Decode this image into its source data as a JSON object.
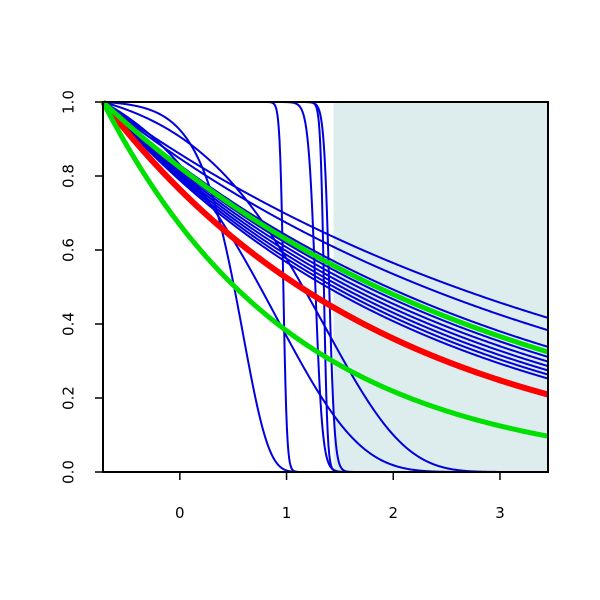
{
  "chart_data": {
    "type": "line",
    "title": "",
    "xlabel": "",
    "ylabel": "",
    "xlim": [
      -0.72,
      3.45
    ],
    "ylim": [
      0.0,
      1.0
    ],
    "x_ticks": [
      0,
      1,
      2,
      3
    ],
    "y_ticks": [
      "0.0",
      "0.2",
      "0.4",
      "0.6",
      "0.8",
      "1.0"
    ],
    "shaded_region": {
      "x_from": 1.44,
      "x_to": 3.45,
      "y_from": 0.0,
      "y_to": 1.0,
      "color": "#ddecec"
    },
    "colors": {
      "blue": "#0000dd",
      "red": "#ff0000",
      "green": "#00e000",
      "axis": "#000000"
    },
    "series": [
      {
        "kind": "exp",
        "rate": 0.21,
        "color": "blue",
        "width": 2
      },
      {
        "kind": "exp",
        "rate": 0.23,
        "color": "blue",
        "width": 2
      },
      {
        "kind": "exp",
        "rate": 0.26,
        "color": "blue",
        "width": 2
      },
      {
        "kind": "exp",
        "rate": 0.27,
        "color": "blue",
        "width": 2
      },
      {
        "kind": "exp",
        "rate": 0.28,
        "color": "blue",
        "width": 2
      },
      {
        "kind": "exp",
        "rate": 0.29,
        "color": "blue",
        "width": 2
      },
      {
        "kind": "exp",
        "rate": 0.3,
        "color": "blue",
        "width": 2
      },
      {
        "kind": "exp",
        "rate": 0.31,
        "color": "blue",
        "width": 2
      },
      {
        "kind": "exp",
        "rate": 0.32,
        "color": "blue",
        "width": 2
      },
      {
        "kind": "exp",
        "rate": 0.33,
        "color": "blue",
        "width": 2
      },
      {
        "kind": "gompertz",
        "a": 0.06,
        "b": 1.35,
        "color": "blue",
        "width": 2
      },
      {
        "kind": "gompertz",
        "a": 0.12,
        "b": 1.3,
        "color": "blue",
        "width": 2
      },
      {
        "kind": "gompertz",
        "a": 0.004,
        "b": 4.2,
        "color": "blue",
        "width": 2
      },
      {
        "kind": "logistic",
        "x0": 0.97,
        "k": 60,
        "color": "blue",
        "width": 2
      },
      {
        "kind": "logistic",
        "x0": 1.35,
        "k": 60,
        "color": "blue",
        "width": 2
      },
      {
        "kind": "logistic",
        "x0": 1.4,
        "k": 40,
        "color": "blue",
        "width": 2
      },
      {
        "kind": "logistic",
        "x0": 1.27,
        "k": 30,
        "color": "blue",
        "width": 2
      },
      {
        "kind": "exp",
        "rate": 0.375,
        "color": "red",
        "width": 6
      },
      {
        "kind": "exp",
        "rate": 0.27,
        "color": "green",
        "width": 5
      },
      {
        "kind": "exp",
        "rate": 0.56,
        "color": "green",
        "width": 5
      }
    ]
  }
}
